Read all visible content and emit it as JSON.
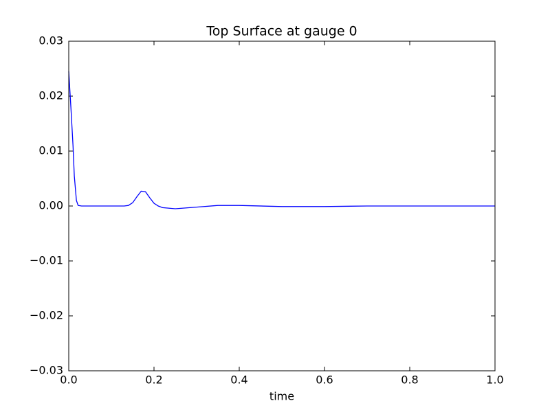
{
  "chart_data": {
    "type": "line",
    "title": "Top Surface at gauge 0",
    "xlabel": "time",
    "x": [
      0,
      0.005,
      0.01,
      0.013,
      0.018,
      0.022,
      0.03,
      0.13,
      0.14,
      0.15,
      0.16,
      0.17,
      0.18,
      0.19,
      0.2,
      0.21,
      0.22,
      0.25,
      0.3,
      0.35,
      0.4,
      0.5,
      0.6,
      0.7,
      0.8,
      1.0
    ],
    "series": [
      {
        "name": "gauge 0",
        "color": "#0000ff",
        "values": [
          0.0245,
          0.018,
          0.011,
          0.0055,
          0.001,
          0.0001,
          0,
          0,
          0.0001,
          0.0006,
          0.0017,
          0.0027,
          0.0026,
          0.0015,
          0.0005,
          0,
          -0.0003,
          -0.0005,
          -0.0002,
          0.0001,
          0.0001,
          -0.0001,
          -0.0001,
          0,
          0,
          0
        ]
      }
    ],
    "xlim": [
      0,
      1
    ],
    "xticks": [
      {
        "value": 0,
        "label": "0.0"
      },
      0.2,
      0.4,
      0.6,
      0.8,
      {
        "value": 1,
        "label": "1.0"
      }
    ],
    "ylim": [
      -0.03,
      0.03
    ],
    "yticks": [
      {
        "value": -0.03,
        "label": "−0.03"
      },
      {
        "value": -0.02,
        "label": "−0.02"
      },
      {
        "value": -0.01,
        "label": "−0.01"
      },
      {
        "value": 0,
        "label": "0.00"
      },
      0.01,
      0.02,
      0.03
    ],
    "grid": false
  }
}
